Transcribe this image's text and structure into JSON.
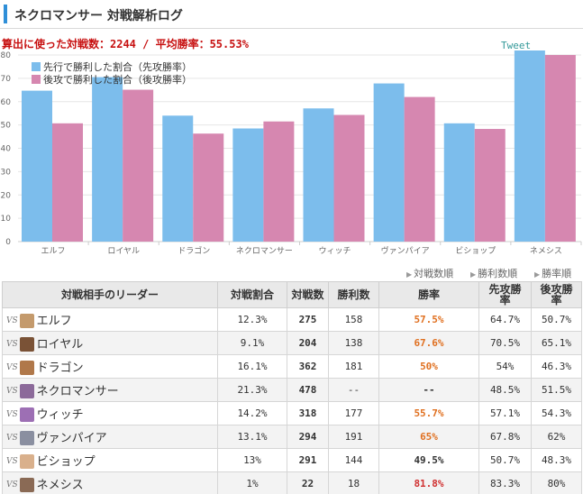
{
  "header": {
    "title": "ネクロマンサー 対戦解析ログ"
  },
  "summary": {
    "text": "算出に使った対戦数：2244 / 平均勝率：55.53%"
  },
  "tweet_label": "Tweet",
  "chart_data": {
    "type": "bar",
    "categories": [
      "エルフ",
      "ロイヤル",
      "ドラゴン",
      "ネクロマンサー",
      "ウィッチ",
      "ヴァンパイア",
      "ビショップ",
      "ネメシス"
    ],
    "series": [
      {
        "name": "先行で勝利した割合（先攻勝率）",
        "color": "#7cbdec",
        "values": [
          64.7,
          70.5,
          54,
          48.5,
          57.1,
          67.8,
          50.7,
          83.3
        ]
      },
      {
        "name": "後攻で勝利した割合（後攻勝率）",
        "color": "#d687b0",
        "values": [
          50.7,
          65.1,
          46.3,
          51.5,
          54.3,
          62,
          48.3,
          80
        ]
      }
    ],
    "ylim": [
      0,
      80
    ],
    "yticks": [
      "0",
      "10",
      "20",
      "30",
      "40",
      "50",
      "60",
      "70",
      "80"
    ],
    "legend": "top-left",
    "grid": true
  },
  "sort": [
    "対戦数順",
    "勝利数順",
    "勝率順"
  ],
  "table": {
    "headers": {
      "leader": "対戦相手のリーダー",
      "share": "対戦割合",
      "games": "対戦数",
      "wins": "勝利数",
      "rate": "勝率",
      "first_a": "先攻勝",
      "first_b": "率",
      "second_a": "後攻勝",
      "second_b": "率"
    },
    "vs_label": "VS",
    "rows": [
      {
        "name": "エルフ",
        "share": "12.3%",
        "games": "275",
        "wins": "158",
        "rate": "57.5%",
        "rate_color": "#e07020",
        "first": "64.7%",
        "second": "50.7%",
        "avatar": "#c49a6c"
      },
      {
        "name": "ロイヤル",
        "share": "9.1%",
        "games": "204",
        "wins": "138",
        "rate": "67.6%",
        "rate_color": "#e07020",
        "first": "70.5%",
        "second": "65.1%",
        "avatar": "#7a5236"
      },
      {
        "name": "ドラゴン",
        "share": "16.1%",
        "games": "362",
        "wins": "181",
        "rate": "50%",
        "rate_color": "#e07020",
        "first": "54%",
        "second": "46.3%",
        "avatar": "#b0784a"
      },
      {
        "name": "ネクロマンサー",
        "share": "21.3%",
        "games": "478",
        "wins": "--",
        "rate": "--",
        "rate_color": "#333333",
        "first": "48.5%",
        "second": "51.5%",
        "avatar": "#8c6a9a"
      },
      {
        "name": "ウィッチ",
        "share": "14.2%",
        "games": "318",
        "wins": "177",
        "rate": "55.7%",
        "rate_color": "#e07020",
        "first": "57.1%",
        "second": "54.3%",
        "avatar": "#9d6fb4"
      },
      {
        "name": "ヴァンパイア",
        "share": "13.1%",
        "games": "294",
        "wins": "191",
        "rate": "65%",
        "rate_color": "#e07020",
        "first": "67.8%",
        "second": "62%",
        "avatar": "#8a8fa0"
      },
      {
        "name": "ビショップ",
        "share": "13%",
        "games": "291",
        "wins": "144",
        "rate": "49.5%",
        "rate_color": "#333333",
        "first": "50.7%",
        "second": "48.3%",
        "avatar": "#d9b08c"
      },
      {
        "name": "ネメシス",
        "share": "1%",
        "games": "22",
        "wins": "18",
        "rate": "81.8%",
        "rate_color": "#d03030",
        "first": "83.3%",
        "second": "80%",
        "avatar": "#8a6a55"
      }
    ]
  }
}
